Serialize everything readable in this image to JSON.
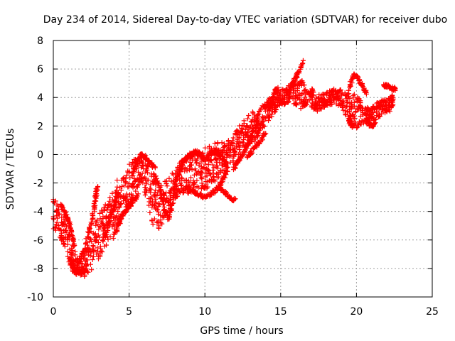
{
  "chart_data": {
    "type": "scatter",
    "title": "Day 234 of 2014, Sidereal Day-to-day VTEC variation (SDTVAR) for receiver dubo",
    "xlabel": "GPS time / hours",
    "ylabel": "SDTVAR / TECUs",
    "xlim": [
      0,
      25
    ],
    "ylim": [
      -10,
      8
    ],
    "xticks": [
      "0",
      "5",
      "10",
      "15",
      "20",
      "25"
    ],
    "yticks": [
      "-10",
      "-8",
      "-6",
      "-4",
      "-2",
      "0",
      "2",
      "4",
      "6",
      "8"
    ],
    "grid": true,
    "marker": "+",
    "marker_color": "#ff0000",
    "trend": [
      [
        0.0,
        -4.0
      ],
      [
        0.3,
        -4.5
      ],
      [
        0.6,
        -5.2
      ],
      [
        0.9,
        -6.0
      ],
      [
        1.2,
        -7.0
      ],
      [
        1.5,
        -7.8
      ],
      [
        1.8,
        -8.1
      ],
      [
        2.1,
        -7.6
      ],
      [
        2.4,
        -6.8
      ],
      [
        2.7,
        -6.2
      ],
      [
        3.0,
        -5.8
      ],
      [
        3.3,
        -5.3
      ],
      [
        3.6,
        -4.8
      ],
      [
        3.9,
        -4.2
      ],
      [
        4.2,
        -3.6
      ],
      [
        4.5,
        -3.2
      ],
      [
        4.8,
        -2.6
      ],
      [
        5.1,
        -2.0
      ],
      [
        5.4,
        -1.5
      ],
      [
        5.7,
        -1.2
      ],
      [
        6.0,
        -1.5
      ],
      [
        6.3,
        -2.3
      ],
      [
        6.6,
        -3.2
      ],
      [
        6.9,
        -3.8
      ],
      [
        7.2,
        -3.5
      ],
      [
        7.5,
        -3.0
      ],
      [
        7.8,
        -2.5
      ],
      [
        8.1,
        -2.0
      ],
      [
        8.4,
        -1.6
      ],
      [
        8.7,
        -1.3
      ],
      [
        9.0,
        -1.2
      ],
      [
        9.3,
        -1.3
      ],
      [
        9.6,
        -1.2
      ],
      [
        9.9,
        -1.0
      ],
      [
        10.2,
        -0.8
      ],
      [
        10.5,
        -0.6
      ],
      [
        10.8,
        -0.5
      ],
      [
        11.1,
        -0.3
      ],
      [
        11.4,
        -0.1
      ],
      [
        11.7,
        0.3
      ],
      [
        12.0,
        0.5
      ],
      [
        12.3,
        1.0
      ],
      [
        12.6,
        1.4
      ],
      [
        12.9,
        1.6
      ],
      [
        13.2,
        1.9
      ],
      [
        13.5,
        2.2
      ],
      [
        13.8,
        2.6
      ],
      [
        14.1,
        3.0
      ],
      [
        14.4,
        3.4
      ],
      [
        14.7,
        3.8
      ],
      [
        15.0,
        4.0
      ],
      [
        15.3,
        4.1
      ],
      [
        15.6,
        4.2
      ],
      [
        15.9,
        4.3
      ],
      [
        16.2,
        4.3
      ],
      [
        16.5,
        4.2
      ],
      [
        16.8,
        4.0
      ],
      [
        17.1,
        3.9
      ],
      [
        17.4,
        3.6
      ],
      [
        17.7,
        3.7
      ],
      [
        18.0,
        3.9
      ],
      [
        18.3,
        4.0
      ],
      [
        18.6,
        4.1
      ],
      [
        18.9,
        4.0
      ],
      [
        19.2,
        3.6
      ],
      [
        19.5,
        3.3
      ],
      [
        19.8,
        3.1
      ],
      [
        20.1,
        3.0
      ],
      [
        20.4,
        2.8
      ],
      [
        20.7,
        2.7
      ],
      [
        21.0,
        2.8
      ],
      [
        21.3,
        3.0
      ],
      [
        21.6,
        3.2
      ],
      [
        21.9,
        3.4
      ],
      [
        22.2,
        3.6
      ],
      [
        22.5,
        3.8
      ]
    ],
    "spread": [
      1.2,
      1.0,
      1.0,
      1.0,
      1.1,
      0.8,
      0.6,
      1.0,
      1.6,
      1.4,
      1.6,
      1.6,
      1.5,
      1.6,
      1.8,
      1.6,
      1.4,
      1.5,
      1.2,
      0.8,
      1.2,
      1.6,
      1.8,
      1.6,
      1.4,
      1.3,
      1.2,
      1.1,
      1.1,
      1.4,
      1.6,
      1.6,
      1.4,
      1.4,
      1.6,
      1.4,
      1.4,
      1.2,
      1.0,
      0.9,
      1.0,
      1.1,
      1.0,
      1.2,
      1.2,
      1.0,
      0.9,
      0.8,
      0.8,
      0.7,
      0.6,
      0.6,
      0.7,
      1.0,
      1.2,
      0.9,
      0.7,
      0.7,
      0.6,
      0.5,
      0.5,
      0.5,
      0.6,
      0.6,
      0.8,
      1.0,
      1.2,
      1.2,
      0.6,
      0.6,
      0.6,
      0.6,
      0.6,
      0.5,
      0.6,
      0.6
    ],
    "branches": [
      [
        [
          1.6,
          -7.6
        ],
        [
          2.0,
          -6.8
        ],
        [
          2.4,
          -5.2
        ],
        [
          2.7,
          -3.8
        ],
        [
          2.8,
          -3.0
        ],
        [
          2.9,
          -2.2
        ]
      ],
      [
        [
          3.3,
          -6.0
        ],
        [
          3.6,
          -5.0
        ],
        [
          3.9,
          -4.0
        ],
        [
          4.1,
          -3.2
        ],
        [
          4.3,
          -2.6
        ]
      ],
      [
        [
          4.0,
          -5.8
        ],
        [
          4.3,
          -4.8
        ],
        [
          4.6,
          -4.2
        ],
        [
          4.9,
          -3.8
        ],
        [
          5.2,
          -3.4
        ],
        [
          5.6,
          -2.8
        ]
      ],
      [
        [
          5.2,
          -1.4
        ],
        [
          5.5,
          -0.6
        ],
        [
          5.8,
          0.0
        ],
        [
          6.1,
          -0.2
        ],
        [
          6.4,
          -0.6
        ],
        [
          6.7,
          -1.0
        ]
      ],
      [
        [
          6.6,
          -1.4
        ],
        [
          7.0,
          -2.2
        ],
        [
          7.3,
          -3.8
        ],
        [
          7.6,
          -4.6
        ],
        [
          7.9,
          -3.2
        ],
        [
          8.2,
          -1.6
        ],
        [
          8.5,
          -0.6
        ],
        [
          8.8,
          -0.2
        ],
        [
          9.1,
          0.0
        ],
        [
          9.4,
          0.2
        ],
        [
          9.7,
          0.0
        ],
        [
          10.0,
          -0.4
        ],
        [
          10.3,
          0.0
        ],
        [
          10.6,
          0.2
        ],
        [
          10.9,
          0.0
        ],
        [
          11.2,
          -0.4
        ],
        [
          11.5,
          -0.8
        ]
      ],
      [
        [
          8.8,
          -2.2
        ],
        [
          9.2,
          -2.6
        ],
        [
          9.6,
          -2.8
        ],
        [
          10.0,
          -3.0
        ],
        [
          10.4,
          -2.8
        ],
        [
          10.8,
          -2.4
        ],
        [
          11.2,
          -1.8
        ],
        [
          11.5,
          -1.0
        ]
      ],
      [
        [
          10.8,
          -2.2
        ],
        [
          11.2,
          -2.6
        ],
        [
          11.6,
          -3.0
        ],
        [
          12.0,
          -3.2
        ]
      ],
      [
        [
          11.9,
          -1.0
        ],
        [
          12.2,
          -0.4
        ],
        [
          12.5,
          0.0
        ],
        [
          12.8,
          0.6
        ],
        [
          13.1,
          1.4
        ],
        [
          13.4,
          2.2
        ],
        [
          13.6,
          3.0
        ]
      ],
      [
        [
          12.8,
          -0.2
        ],
        [
          13.2,
          0.4
        ],
        [
          13.6,
          0.8
        ],
        [
          14.0,
          1.6
        ]
      ],
      [
        [
          14.2,
          3.2
        ],
        [
          14.4,
          3.6
        ],
        [
          14.6,
          4.4
        ],
        [
          14.8,
          4.6
        ]
      ],
      [
        [
          15.6,
          4.6
        ],
        [
          15.9,
          5.2
        ],
        [
          16.2,
          5.8
        ],
        [
          16.5,
          6.6
        ]
      ],
      [
        [
          19.5,
          4.6
        ],
        [
          19.8,
          5.6
        ],
        [
          20.1,
          5.4
        ],
        [
          20.4,
          4.8
        ],
        [
          20.7,
          4.2
        ]
      ],
      [
        [
          21.8,
          4.8
        ],
        [
          22.1,
          4.8
        ],
        [
          22.4,
          4.6
        ],
        [
          22.6,
          4.6
        ]
      ],
      [
        [
          19.5,
          2.6
        ],
        [
          19.6,
          2.2
        ],
        [
          19.7,
          2.0
        ]
      ],
      [
        [
          20.8,
          2.2
        ],
        [
          21.0,
          2.0
        ],
        [
          21.3,
          2.2
        ]
      ],
      [
        [
          1.0,
          -7.2
        ],
        [
          1.3,
          -8.0
        ],
        [
          1.6,
          -8.2
        ],
        [
          1.9,
          -8.3
        ],
        [
          2.2,
          -8.0
        ]
      ],
      [
        [
          0.5,
          -3.6
        ],
        [
          0.8,
          -4.2
        ],
        [
          1.0,
          -4.6
        ],
        [
          1.2,
          -5.4
        ],
        [
          1.4,
          -6.6
        ]
      ]
    ]
  }
}
